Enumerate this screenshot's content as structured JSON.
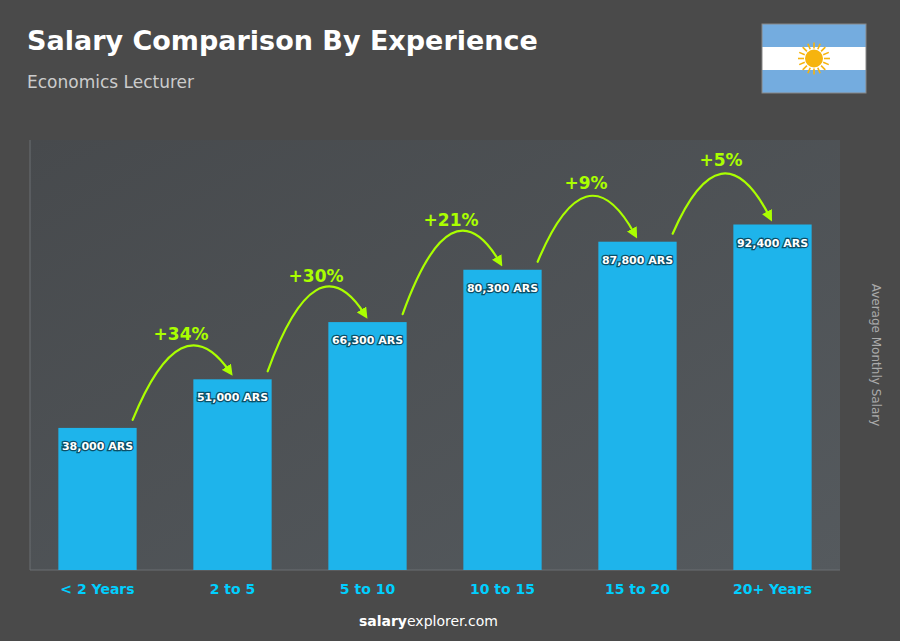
{
  "chart_data": {
    "type": "bar",
    "title": "Salary Comparison By Experience",
    "subtitle": "Economics Lecturer",
    "categories": [
      "< 2 Years",
      "2 to 5",
      "5 to 10",
      "10 to 15",
      "15 to 20",
      "20+ Years"
    ],
    "values": [
      38000,
      51000,
      66300,
      80300,
      87800,
      92400
    ],
    "value_labels": [
      "38,000 ARS",
      "51,000 ARS",
      "66,300 ARS",
      "80,300 ARS",
      "87,800 ARS",
      "92,400 ARS"
    ],
    "data_labels": true,
    "annotations": [
      "+34%",
      "+30%",
      "+21%",
      "+9%",
      "+5%"
    ],
    "ylabel": "Average Monthly Salary",
    "ylim": [
      0,
      115000
    ],
    "tick_labels": "x",
    "grid": false,
    "color": "#1eb4eb",
    "watermark": [
      "salary",
      "explorer.com"
    ]
  }
}
